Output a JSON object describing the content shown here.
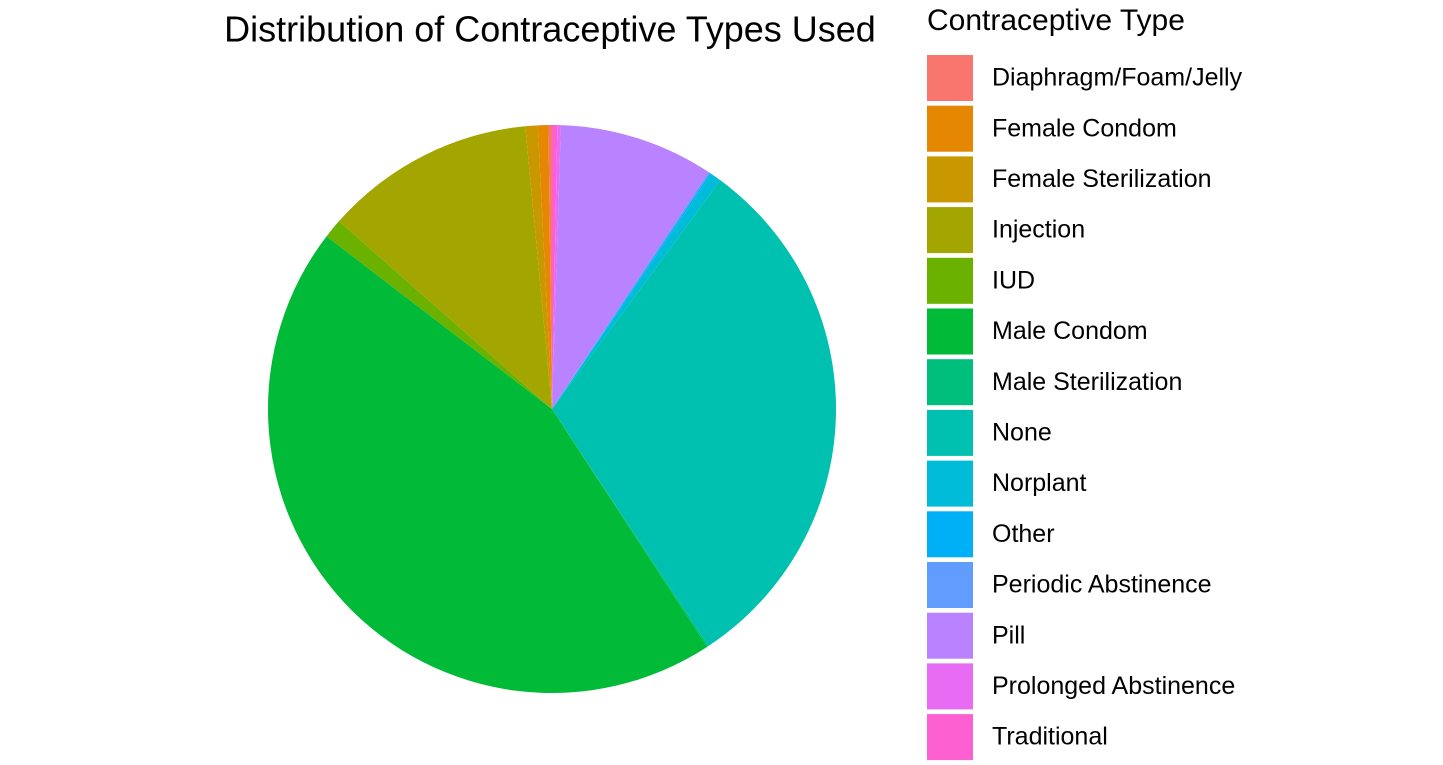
{
  "chart_data": {
    "type": "pie",
    "title": "Distribution of Contraceptive Types Used",
    "legend_title": "Contraceptive Type",
    "categories": [
      "Diaphragm/Foam/Jelly",
      "Female Condom",
      "Female Sterilization",
      "Injection",
      "IUD",
      "Male Condom",
      "Male Sterilization",
      "None",
      "Norplant",
      "Other",
      "Periodic Abstinence",
      "Pill",
      "Prolonged Abstinence",
      "Traditional"
    ],
    "values": [
      0.2,
      0.6,
      0.7,
      12,
      1.1,
      44.6,
      0.1,
      30.6,
      0.6,
      0.1,
      0.1,
      8.8,
      0.2,
      0.3
    ],
    "colors": [
      "#F8766D",
      "#E58700",
      "#C99800",
      "#A3A500",
      "#6BB100",
      "#00BA38",
      "#00BF7D",
      "#00C0AF",
      "#00BCD8",
      "#00B0F6",
      "#619CFF",
      "#B983FF",
      "#E76BF3",
      "#FD61D1"
    ],
    "legend_position": "right"
  }
}
